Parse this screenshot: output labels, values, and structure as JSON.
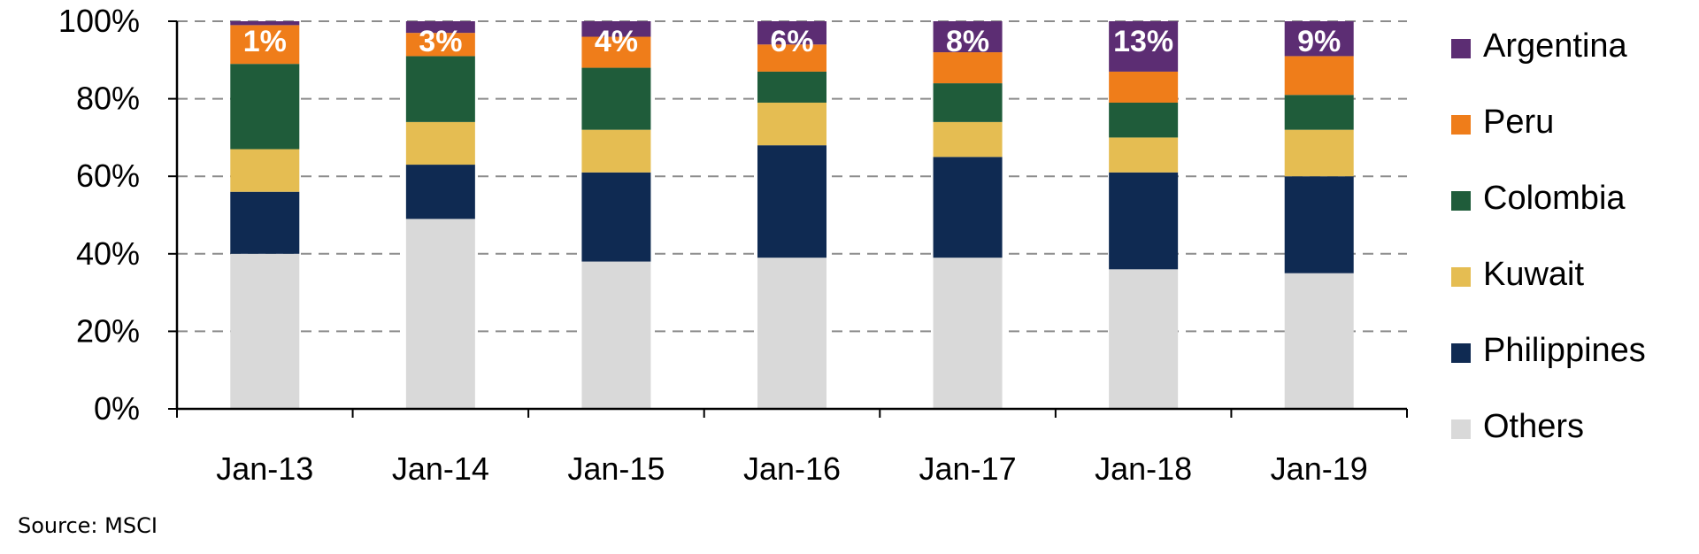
{
  "chart_data": {
    "type": "bar",
    "stacked": true,
    "categories": [
      "Jan-13",
      "Jan-14",
      "Jan-15",
      "Jan-16",
      "Jan-17",
      "Jan-18",
      "Jan-19"
    ],
    "yticks": [
      "0%",
      "20%",
      "40%",
      "60%",
      "80%",
      "100%"
    ],
    "ylim": [
      0,
      100
    ],
    "grid": "horizontal dashed",
    "legend_position": "right",
    "series": [
      {
        "name": "Others",
        "color": "#d9d9d9",
        "values": [
          40,
          49,
          38,
          39,
          39,
          36,
          35
        ]
      },
      {
        "name": "Philippines",
        "color": "#0f2a52",
        "values": [
          16,
          14,
          23,
          29,
          26,
          25,
          25
        ]
      },
      {
        "name": "Kuwait",
        "color": "#e5bd52",
        "values": [
          11,
          11,
          11,
          11,
          9,
          9,
          12
        ]
      },
      {
        "name": "Colombia",
        "color": "#1f5c3a",
        "values": [
          22,
          17,
          16,
          8,
          10,
          9,
          9
        ]
      },
      {
        "name": "Peru",
        "color": "#ef7d1a",
        "values": [
          10,
          6,
          8,
          7,
          8,
          8,
          10
        ]
      },
      {
        "name": "Argentina",
        "color": "#5c2d73",
        "values": [
          1,
          3,
          4,
          6,
          8,
          13,
          9
        ]
      }
    ],
    "data_labels": {
      "series": "Argentina",
      "labels": [
        "1%",
        "3%",
        "4%",
        "6%",
        "8%",
        "13%",
        "9%"
      ]
    }
  },
  "source": "Source:  MSCI"
}
